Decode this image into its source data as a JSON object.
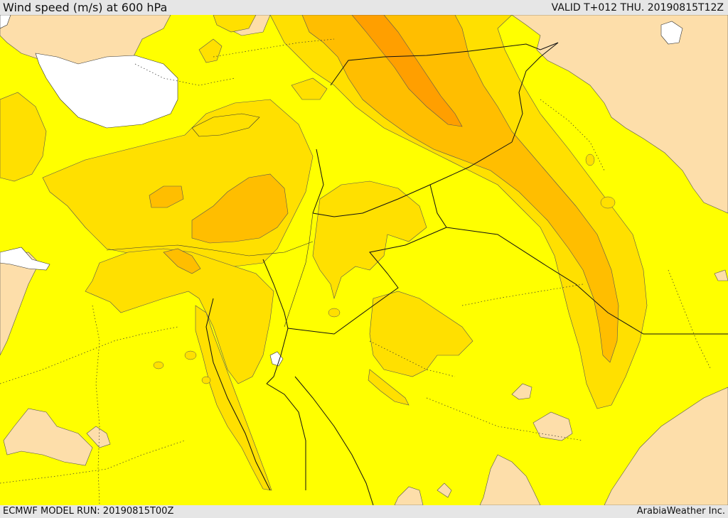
{
  "header": {
    "title": "Wind speed (m/s) at 600 hPa",
    "valid": "VALID T+012 THU. 20190815T12Z"
  },
  "footer": {
    "model_run": "ECMWF MODEL RUN: 20190815T00Z",
    "credit": "ArabiaWeather Inc."
  },
  "map": {
    "region": "Eastern Mediterranean and Middle East",
    "variable": "wind speed",
    "level_hPa": 600,
    "colors": {
      "land_low_wind": "#fddeaa",
      "wind_band_1": "#ffff00",
      "wind_band_2": "#ffe000",
      "wind_band_3": "#ffbe00",
      "wind_band_4": "#ff9f00",
      "water": "#ffffff",
      "boundary": "#222222"
    }
  }
}
